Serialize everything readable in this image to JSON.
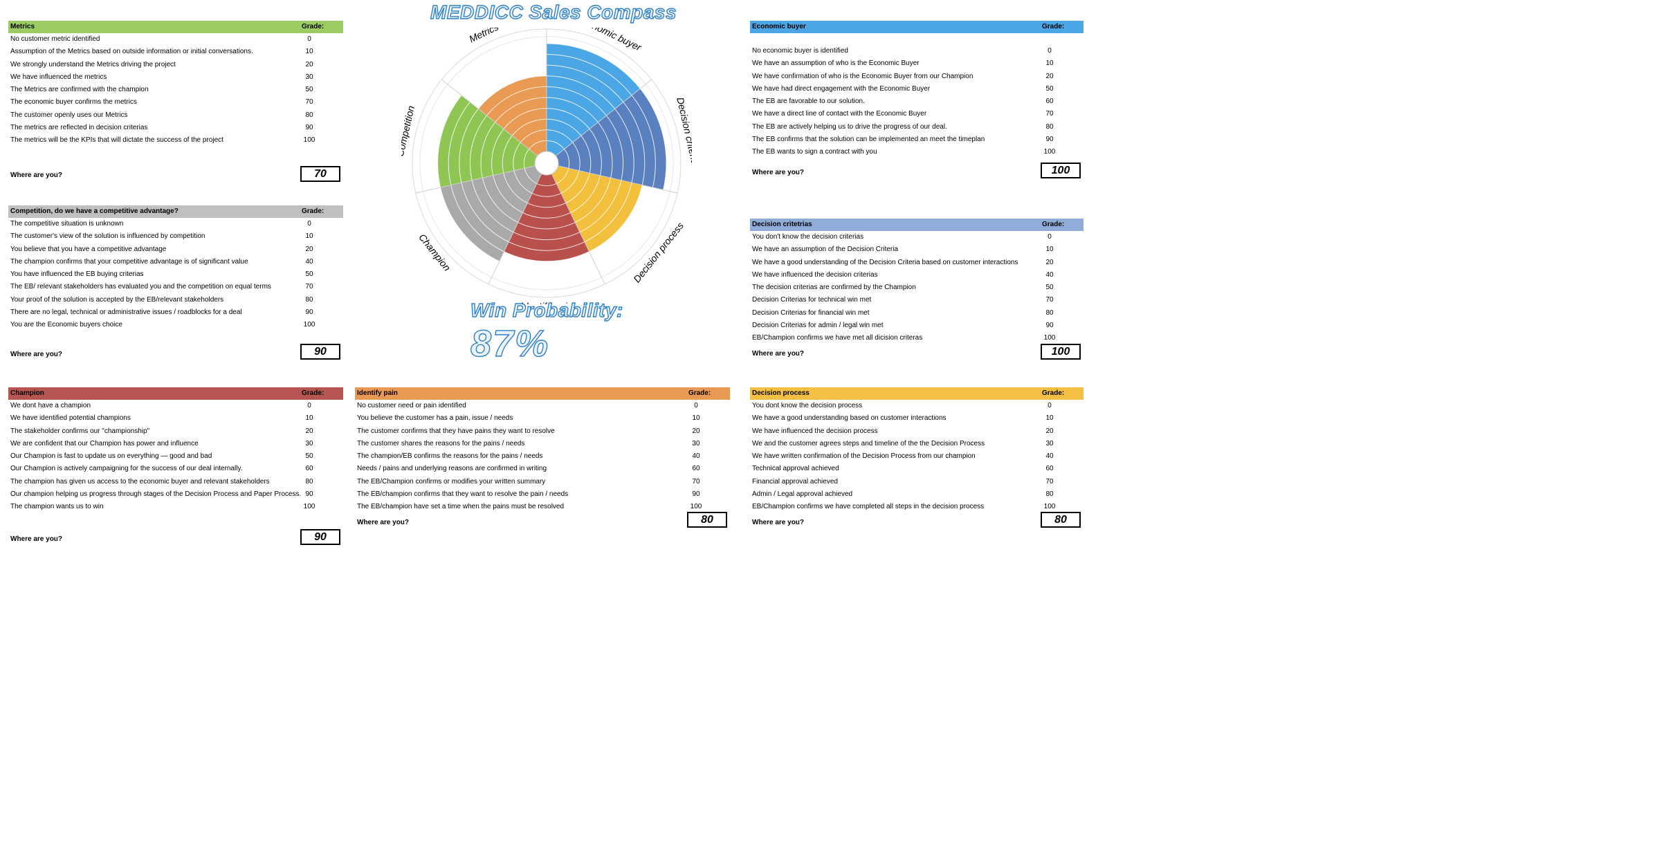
{
  "title": "MEDDICC Sales Compass",
  "win_probability_label": "Win Probability:",
  "win_probability_value": "87%",
  "grade_label": "Grade:",
  "where_label": "Where are you?",
  "colors": {
    "metrics": "#9ccb62",
    "economic_buyer": "#4ba6e6",
    "decision_criteria": "#5b80bf",
    "decision_process": "#f2c03c",
    "identify_pain": "#b9504b",
    "champion": "#a9a9a9",
    "competition": "#8fc653",
    "metrics_wedge": "#e99a53",
    "competition_header": "#c0c0c0",
    "decision_criteria_header": "#90acd9",
    "identify_pain_header": "#e89a55",
    "champion_header": "#b55652",
    "decision_process_header": "#f3c043",
    "title_outline": "#2f7fc9"
  },
  "panels": {
    "metrics": {
      "title": "Metrics",
      "answer": "70",
      "rows": [
        {
          "text": "No customer metric identified",
          "grade": "0"
        },
        {
          "text": "Assumption of the Metrics based on outside information or initial conversations.",
          "grade": "10"
        },
        {
          "text": "We strongly understand the Metrics driving the project",
          "grade": "20"
        },
        {
          "text": "We have influenced the metrics",
          "grade": "30"
        },
        {
          "text": "The Metrics are confirmed with the champion",
          "grade": "50"
        },
        {
          "text": "The economic buyer confirms the metrics",
          "grade": "70"
        },
        {
          "text": "The customer openly uses our Metrics",
          "grade": "80"
        },
        {
          "text": "The metrics are reflected in decision criterias",
          "grade": "90"
        },
        {
          "text": "The metrics will be the KPIs that will dictate the success of the project",
          "grade": "100"
        }
      ]
    },
    "competition": {
      "title": "Competition, do we have a competitive advantage?",
      "answer": "90",
      "rows": [
        {
          "text": "The competitive situation is unknown",
          "grade": "0"
        },
        {
          "text": "The customer's view of the solution is influenced by competition",
          "grade": "10"
        },
        {
          "text": "You believe that you have a competitive advantage",
          "grade": "20"
        },
        {
          "text": "The champion confirms that your competitive advantage is of significant value",
          "grade": "40"
        },
        {
          "text": "You have influenced the EB  buying criterias",
          "grade": "50"
        },
        {
          "text": "The EB/ relevant stakeholders has evaluated you and the competition on equal terms",
          "grade": "70"
        },
        {
          "text": "Your proof of the solution is accepted by the EB/relevant stakeholders",
          "grade": "80"
        },
        {
          "text": "There are no legal, technical or administrative issues / roadblocks for a deal",
          "grade": "90"
        },
        {
          "text": "You are the Economic buyers choice",
          "grade": "100"
        }
      ]
    },
    "champion": {
      "title": "Champion",
      "answer": "90",
      "rows": [
        {
          "text": "We dont have a champion",
          "grade": "0"
        },
        {
          "text": "We have identified potential champions",
          "grade": "10"
        },
        {
          "text": "The stakeholder confirms our \"championship\"",
          "grade": "20"
        },
        {
          "text": "We are confident that our Champion has power and influence",
          "grade": "30"
        },
        {
          "text": "Our Champion is fast to update us on everything — good and bad",
          "grade": "50"
        },
        {
          "text": "Our Champion is actively campaigning for the success of our deal internally.",
          "grade": "60"
        },
        {
          "text": "The champion has given us access to the economic buyer and relevant stakeholders",
          "grade": "80"
        },
        {
          "text": "Our champion helping us progress through stages of the Decision Process and Paper Process.",
          "grade": "90"
        },
        {
          "text": "The champion wants us to win",
          "grade": "100"
        }
      ]
    },
    "identify_pain": {
      "title": "Identify pain",
      "answer": "80",
      "rows": [
        {
          "text": "No customer need or pain identified",
          "grade": "0"
        },
        {
          "text": "You believe the customer has a pain, issue / needs",
          "grade": "10"
        },
        {
          "text": "The customer confirms that they have pains  they want to resolve",
          "grade": "20"
        },
        {
          "text": "The customer shares the reasons for the pains / needs",
          "grade": "30"
        },
        {
          "text": "The champion/EB confirms the reasons for the pains / needs",
          "grade": "40"
        },
        {
          "text": "Needs / pains and underlying reasons are confirmed in writing",
          "grade": "60"
        },
        {
          "text": "The EB/Champion confirms or modifies your written summary",
          "grade": "70"
        },
        {
          "text": "The EB/champion confirms that they want to resolve the pain / needs",
          "grade": "90"
        },
        {
          "text": "The EB/champion have set a time when the pains must be resolved",
          "grade": "100"
        }
      ]
    },
    "economic_buyer": {
      "title": "Economic buyer",
      "answer": "100",
      "rows": [
        {
          "text": "No economic buyer is identified",
          "grade": "0"
        },
        {
          "text": "We have an assumption of who is the Economic Buyer",
          "grade": "10"
        },
        {
          "text": "We have confirmation of who is the Economic Buyer from our Champion",
          "grade": "20"
        },
        {
          "text": "We have had direct engagement with the Economic Buyer",
          "grade": "50"
        },
        {
          "text": "The EB are favorable to our solution.",
          "grade": "60"
        },
        {
          "text": "We have a direct line of contact with the Economic Buyer",
          "grade": "70"
        },
        {
          "text": "The EB are actively helping us to drive the progress of our deal.",
          "grade": "80"
        },
        {
          "text": "The EB confirms that the solution can be implemented an meet the timeplan",
          "grade": "90"
        },
        {
          "text": "The EB wants to sign a contract with you",
          "grade": "100"
        }
      ]
    },
    "decision_criteria": {
      "title": "Decision critetrias",
      "answer": "100",
      "rows": [
        {
          "text": "You don't know the decision criterias",
          "grade": "0"
        },
        {
          "text": "We have an assumption of the Decision Criteria",
          "grade": "10"
        },
        {
          "text": "We have a  good understanding of the Decision Criteria based on customer interactions",
          "grade": "20"
        },
        {
          "text": "We have influenced the decision criterias",
          "grade": "40"
        },
        {
          "text": "The decision criterias are confirmed by the Champion",
          "grade": "50"
        },
        {
          "text": "Decision Criterias for technical win met",
          "grade": "70"
        },
        {
          "text": "Decision Criterias for financial win met",
          "grade": "80"
        },
        {
          "text": "Decision Criterias for admin / legal win met",
          "grade": "90"
        },
        {
          "text": "EB/Champion confirms we have met all dicision criteras",
          "grade": "100"
        }
      ]
    },
    "decision_process": {
      "title": "Decision process",
      "answer": "80",
      "rows": [
        {
          "text": "You dont know the decision process",
          "grade": "0"
        },
        {
          "text": "We have a  good understanding based on customer interactions",
          "grade": "10"
        },
        {
          "text": "We have influenced the decision process",
          "grade": "20"
        },
        {
          "text": "We and the customer agrees steps and timeline of the the Decision Process",
          "grade": "30"
        },
        {
          "text": "We have written confirmation of the Decision Process from our champion",
          "grade": "40"
        },
        {
          "text": "Technical approval achieved",
          "grade": "60"
        },
        {
          "text": "Financial approval achieved",
          "grade": "70"
        },
        {
          "text": "Admin / Legal approval achieved",
          "grade": "80"
        },
        {
          "text": "EB/Champion confirms we have completed all steps in the decision process",
          "grade": "100"
        }
      ]
    }
  },
  "chart_data": {
    "type": "polar-area",
    "rmax": 100,
    "ring_step": 10,
    "categories": [
      "Economic buyer",
      "Decision criteria",
      "Decision process",
      "identify pain",
      "Champion",
      "Competition",
      "Metrics"
    ],
    "values": [
      100,
      100,
      80,
      80,
      90,
      90,
      70
    ],
    "colors": [
      "#4ba6e6",
      "#5b80bf",
      "#f2c03c",
      "#b9504b",
      "#a9a9a9",
      "#8fc653",
      "#e99a53"
    ]
  }
}
